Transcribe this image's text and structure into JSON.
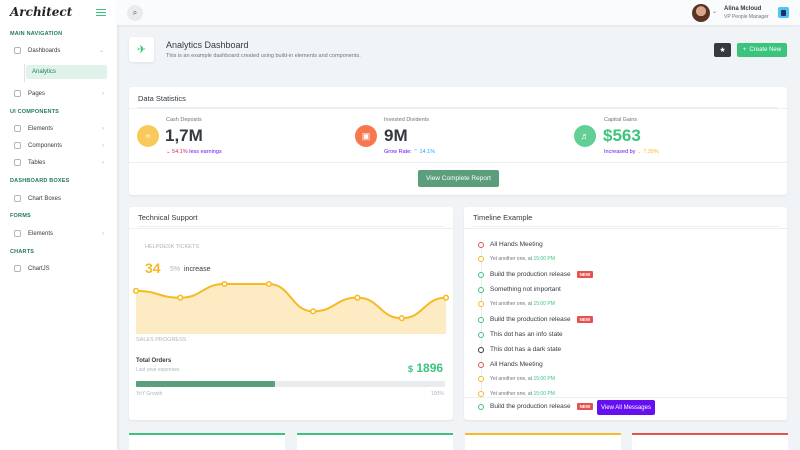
{
  "app": {
    "logo": "Architect"
  },
  "sidebar": {
    "sections": [
      "MAIN NAVIGATION",
      "UI COMPONENTS",
      "DASHBOARD BOXES",
      "FORMS",
      "CHARTS"
    ],
    "items": {
      "dashboards": "Dashboards",
      "analytics": "Analytics",
      "pages": "Pages",
      "elements": "Elements",
      "components": "Components",
      "tables": "Tables",
      "chart_boxes": "Chart Boxes",
      "form_elements": "Elements",
      "chartjs": "ChartJS"
    }
  },
  "header": {
    "user_name": "Alina Mcloud",
    "user_role": "VP People Manager"
  },
  "page": {
    "title": "Analytics Dashboard",
    "subtitle": "This is an example dashboard created using build-in elements and components.",
    "create_label": "Create New"
  },
  "data_statistics": {
    "title": "Data Statistics",
    "stats": [
      {
        "label": "Cash Deposits",
        "value": "1,7M",
        "delta": "54.1%",
        "note": "less earnings",
        "color": "#f7b924"
      },
      {
        "label": "Invested Dividents",
        "value": "9M",
        "delta": "14.1%",
        "note": "Grow Rate:",
        "color": "#f7784f"
      },
      {
        "label": "Capital Gains",
        "value": "$563",
        "delta": "7.35%",
        "note": "Increased by",
        "color": "#3ac47d"
      }
    ],
    "report_label": "View Complete Report"
  },
  "technical_support": {
    "title": "Technical Support",
    "helpdesk_label": "HELPDESK TICKETS",
    "big_number": "34",
    "percent": "5%",
    "trend": "increase",
    "sales_label": "SALES PROGRESS",
    "orders_title": "Total Orders",
    "orders_sub": "Last year expenses",
    "orders_value": "1896",
    "currency": "$",
    "progress_left": "YoY Growth",
    "progress_right": "100%",
    "progress": 0.45
  },
  "chart_data": {
    "type": "area",
    "values": [
      5,
      4,
      6,
      6,
      2,
      4,
      1,
      4
    ],
    "color": "#f7b924"
  },
  "timeline": {
    "title": "Timeline Example",
    "items": [
      {
        "text": "All Hands Meeting",
        "color": "#e6534f"
      },
      {
        "sub": "Yet another one, at",
        "time": "15:00 PM",
        "color": "#f7b924"
      },
      {
        "text": "Build the production release",
        "badge": "NEW",
        "color": "#3ac47d"
      },
      {
        "text": "Something not important",
        "color": "#3ac47d"
      },
      {
        "sub": "Yet another one, at",
        "time": "15:00 PM",
        "color": "#f7b924"
      },
      {
        "text": "Build the production release",
        "badge": "NEW",
        "color": "#3ac47d"
      },
      {
        "text": "This dot has an info state",
        "color": "#3ac47d"
      },
      {
        "text": "This dot has a dark state",
        "color": "#343a40"
      },
      {
        "text": "All Hands Meeting",
        "color": "#e6534f"
      },
      {
        "sub": "Yet another one, at",
        "time": "15:00 PM",
        "color": "#f7b924"
      },
      {
        "sub": "Yet another one, at",
        "time": "15:00 PM",
        "color": "#f7b924"
      },
      {
        "text": "Build the production release",
        "badge": "NEW",
        "color": "#3ac47d"
      }
    ],
    "view_all": "View All Messages"
  }
}
